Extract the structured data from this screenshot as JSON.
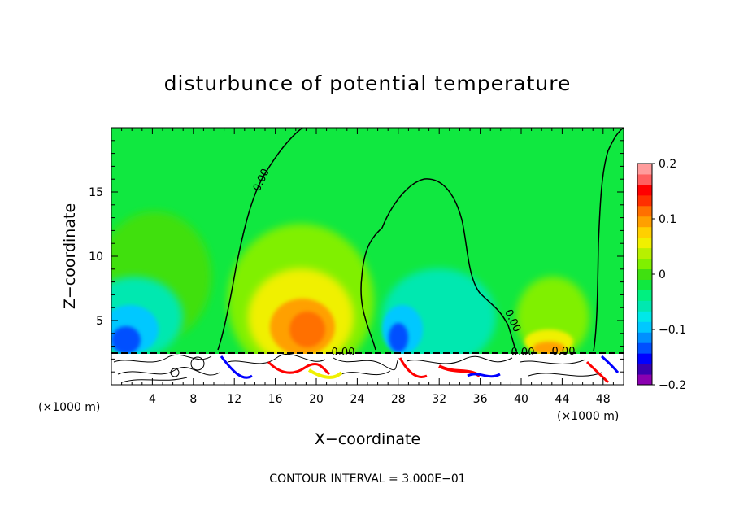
{
  "chart_data": {
    "type": "heatmap",
    "title": "disturbunce of potential temperature",
    "xlabel": "X−coordinate",
    "ylabel": "Z−coordinate",
    "x_unit_label": "(×1000 m)",
    "x_unit_label_right": "(×1000 m)",
    "xlim": [
      0,
      50
    ],
    "ylim": [
      0,
      20
    ],
    "xticks": [
      4,
      8,
      12,
      16,
      20,
      24,
      28,
      32,
      36,
      40,
      44,
      48
    ],
    "yticks": [
      5,
      10,
      15
    ],
    "contour_interval_text": "CONTOUR INTERVAL = 3.000E−01",
    "contour_labels": [
      "0.00",
      "0.00",
      "0.00",
      "0.00",
      "0.00"
    ],
    "colorbar": {
      "min": -0.2,
      "max": 0.2,
      "tick_values": [
        0.2,
        0.1,
        0,
        -0.1,
        -0.2
      ],
      "tick_labels": [
        "0.2",
        "0.1",
        "0",
        "−0.1",
        "−0.2"
      ],
      "colors": [
        "#8a00b0",
        "#3a00b0",
        "#0000ff",
        "#0050ff",
        "#0090ff",
        "#00c8ff",
        "#00e8e8",
        "#00e8b0",
        "#00f080",
        "#10e840",
        "#40e010",
        "#80f000",
        "#b8f000",
        "#f0f000",
        "#ffd000",
        "#ffa000",
        "#ff7000",
        "#ff3000",
        "#ff0000",
        "#ff6060",
        "#ff9c9c"
      ]
    },
    "field_summary": [
      {
        "feature": "warm anomaly",
        "x": 19,
        "z": 4,
        "value": 0.13
      },
      {
        "feature": "warm anomaly",
        "x": 43,
        "z": 3,
        "value": 0.08
      },
      {
        "feature": "cold anomaly",
        "x": 1.5,
        "z": 3.5,
        "value": -0.13
      },
      {
        "feature": "cold anomaly",
        "x": 27.5,
        "z": 3.5,
        "value": -0.13
      },
      {
        "feature": "cold anomaly",
        "x": 34,
        "z": 5,
        "value": -0.06
      },
      {
        "feature": "terrain/cloud region",
        "z_top": 2.5
      }
    ]
  }
}
